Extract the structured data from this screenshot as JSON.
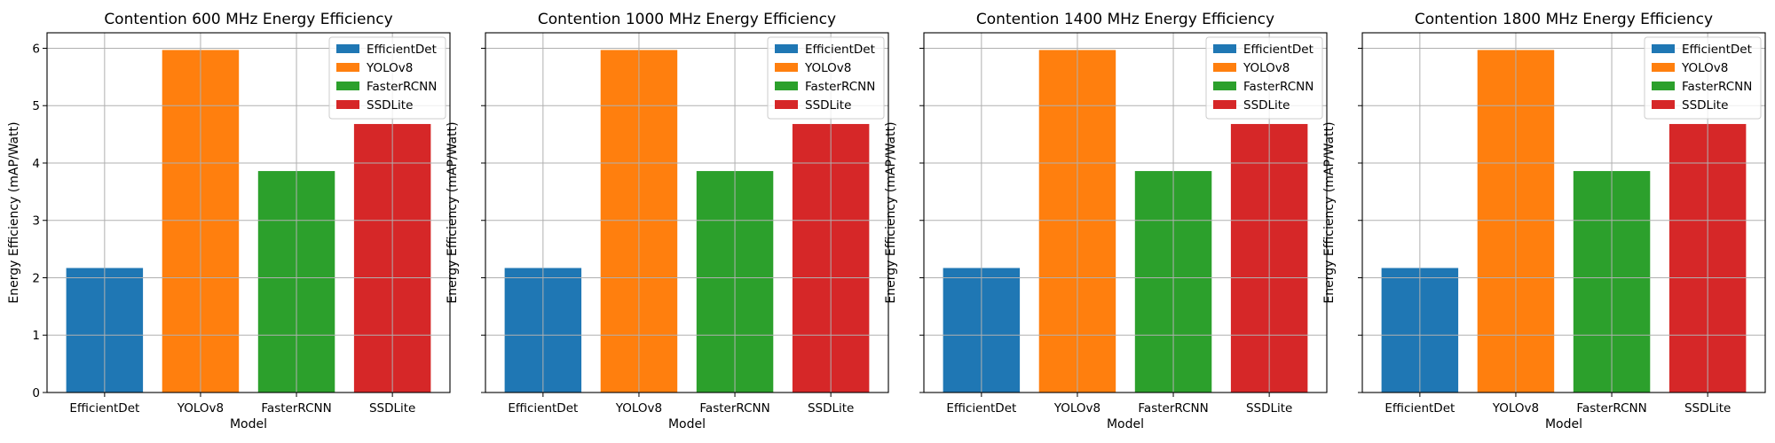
{
  "chart_data": [
    {
      "type": "bar",
      "title": "Contention 600 MHz Energy Efficiency",
      "xlabel": "Model",
      "ylabel": "Energy Efficiency (mAP/Watt)",
      "categories": [
        "EfficientDet",
        "YOLOv8",
        "FasterRCNN",
        "SSDLite"
      ],
      "values": [
        2.17,
        5.97,
        3.86,
        4.68
      ],
      "colors": [
        "#1f77b4",
        "#ff7f0e",
        "#2ca02c",
        "#d62728"
      ],
      "legend": [
        "EfficientDet",
        "YOLOv8",
        "FasterRCNN",
        "SSDLite"
      ],
      "legend_position": "top-right",
      "ylim": [
        0,
        6.27
      ],
      "yticks": [
        "0",
        "1",
        "2",
        "3",
        "4",
        "5",
        "6"
      ],
      "show_ytick_labels": true,
      "show_ylabel": true,
      "grid": true
    },
    {
      "type": "bar",
      "title": "Contention 1000 MHz Energy Efficiency",
      "xlabel": "Model",
      "ylabel": "Energy Efficiency (mAP/Watt)",
      "categories": [
        "EfficientDet",
        "YOLOv8",
        "FasterRCNN",
        "SSDLite"
      ],
      "values": [
        2.17,
        5.97,
        3.86,
        4.68
      ],
      "colors": [
        "#1f77b4",
        "#ff7f0e",
        "#2ca02c",
        "#d62728"
      ],
      "legend": [
        "EfficientDet",
        "YOLOv8",
        "FasterRCNN",
        "SSDLite"
      ],
      "legend_position": "top-right",
      "ylim": [
        0,
        6.27
      ],
      "yticks": [
        "0",
        "1",
        "2",
        "3",
        "4",
        "5",
        "6"
      ],
      "show_ytick_labels": false,
      "show_ylabel": true,
      "grid": true
    },
    {
      "type": "bar",
      "title": "Contention 1400 MHz Energy Efficiency",
      "xlabel": "Model",
      "ylabel": "Energy Efficiency (mAP/Watt)",
      "categories": [
        "EfficientDet",
        "YOLOv8",
        "FasterRCNN",
        "SSDLite"
      ],
      "values": [
        2.17,
        5.97,
        3.86,
        4.68
      ],
      "colors": [
        "#1f77b4",
        "#ff7f0e",
        "#2ca02c",
        "#d62728"
      ],
      "legend": [
        "EfficientDet",
        "YOLOv8",
        "FasterRCNN",
        "SSDLite"
      ],
      "legend_position": "top-right",
      "ylim": [
        0,
        6.27
      ],
      "yticks": [
        "0",
        "1",
        "2",
        "3",
        "4",
        "5",
        "6"
      ],
      "show_ytick_labels": false,
      "show_ylabel": true,
      "grid": true
    },
    {
      "type": "bar",
      "title": "Contention 1800 MHz Energy Efficiency",
      "xlabel": "Model",
      "ylabel": "Energy Efficiency (mAP/Watt)",
      "categories": [
        "EfficientDet",
        "YOLOv8",
        "FasterRCNN",
        "SSDLite"
      ],
      "values": [
        2.17,
        5.97,
        3.86,
        4.68
      ],
      "colors": [
        "#1f77b4",
        "#ff7f0e",
        "#2ca02c",
        "#d62728"
      ],
      "legend": [
        "EfficientDet",
        "YOLOv8",
        "FasterRCNN",
        "SSDLite"
      ],
      "legend_position": "top-right",
      "ylim": [
        0,
        6.27
      ],
      "yticks": [
        "0",
        "1",
        "2",
        "3",
        "4",
        "5",
        "6"
      ],
      "show_ytick_labels": false,
      "show_ylabel": true,
      "grid": true
    }
  ]
}
